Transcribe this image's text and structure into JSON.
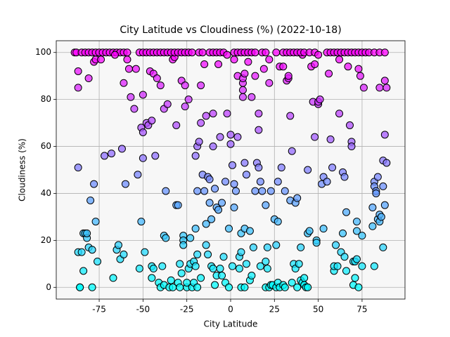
{
  "chart_data": {
    "type": "scatter",
    "title": "City Latitude vs Cloudiness (%) (2022-10-18)",
    "x_label": "City Latitude",
    "y_label": "Cloudiness (%)",
    "colormap": "cool",
    "grid": true,
    "xlim": [
      -99.5,
      99.5
    ],
    "ylim": [
      -5,
      105
    ],
    "xticks": [
      -75,
      -50,
      -25,
      0,
      25,
      50,
      75
    ],
    "yticks": [
      0,
      20,
      40,
      60,
      80,
      100
    ],
    "x": [
      -89,
      -88,
      -87,
      -87,
      -87,
      -87,
      -86,
      -86,
      -85,
      -84,
      -84,
      -83,
      -82,
      -82,
      -81,
      -80,
      -79,
      -79,
      -78,
      -77,
      -76,
      -81,
      -78,
      -77,
      -85,
      -83,
      -81,
      -79,
      -77,
      -75,
      -73,
      -74,
      -72,
      -68,
      -67,
      -65,
      -64,
      -63,
      -62,
      -61,
      -60,
      -61,
      -59,
      -58,
      -57,
      -55,
      -54,
      -53,
      -52,
      -51,
      -50,
      -51,
      -50,
      -49,
      -50,
      -48,
      -71,
      -69,
      -67,
      -65,
      -63,
      -61,
      -59,
      -66,
      -52,
      -50,
      -47,
      -46,
      -45,
      -45,
      -45,
      -44,
      -44,
      -43,
      -42,
      -41,
      -40,
      -40,
      -39,
      -38,
      -38,
      -38,
      -37,
      -37,
      -36,
      -35,
      -34,
      -33,
      -33,
      -32,
      -31,
      -31,
      -30,
      -30,
      -29,
      -29,
      -28,
      -28,
      -27,
      -27,
      -27,
      -26,
      -26,
      -25,
      -25,
      -48,
      -46,
      -44,
      -42,
      -40,
      -38,
      -36,
      -34,
      -32,
      -30,
      -28,
      -26,
      -24,
      -24,
      -23,
      -23,
      -22,
      -21,
      -21,
      -20,
      -20,
      -20,
      -19,
      -19,
      -19,
      -19,
      -18,
      -17,
      -17,
      -17,
      -16,
      -15,
      -15,
      -14,
      -14,
      -14,
      -13,
      -13,
      -12,
      -12,
      -11,
      -11,
      -10,
      -10,
      -10,
      -9,
      -9,
      -8,
      -8,
      -7,
      -7,
      -6,
      -6,
      -5,
      -5,
      -4,
      -3,
      -3,
      -2,
      -1,
      -1,
      -24,
      -22,
      -18,
      -16,
      -12,
      -10,
      -8,
      -6,
      -4,
      -2,
      0,
      0,
      1,
      1,
      2,
      2,
      2,
      3,
      4,
      4,
      5,
      5,
      6,
      6,
      6,
      7,
      7,
      7,
      7,
      8,
      8,
      8,
      8,
      9,
      9,
      10,
      11,
      11,
      12,
      12,
      13,
      14,
      14,
      15,
      16,
      16,
      16,
      17,
      17,
      18,
      19,
      20,
      20,
      20,
      21,
      21,
      22,
      22,
      22,
      23,
      23,
      24,
      25,
      2,
      4,
      6,
      8,
      10,
      12,
      14,
      18,
      20,
      26,
      26,
      27,
      27,
      27,
      28,
      28,
      29,
      30,
      30,
      31,
      31,
      32,
      33,
      33,
      34,
      34,
      35,
      35,
      36,
      37,
      37,
      38,
      38,
      39,
      40,
      40,
      41,
      41,
      42,
      42,
      43,
      44,
      44,
      44,
      45,
      46,
      47,
      48,
      48,
      49,
      49,
      50,
      50,
      51,
      52,
      53,
      53,
      26,
      30,
      32,
      34,
      36,
      38,
      40,
      42,
      45,
      48,
      50,
      55,
      56,
      57,
      58,
      59,
      59,
      60,
      61,
      62,
      62,
      63,
      64,
      64,
      65,
      65,
      66,
      66,
      67,
      68,
      69,
      69,
      70,
      70,
      71,
      71,
      72,
      72,
      72,
      73,
      73,
      74,
      75,
      75,
      76,
      81,
      81,
      82,
      82,
      82,
      83,
      83,
      84,
      84,
      85,
      85,
      85,
      86,
      87,
      87,
      87,
      88,
      88,
      88,
      89,
      89,
      55,
      57,
      59,
      61,
      63,
      65,
      67,
      69,
      71,
      73,
      75,
      77,
      79,
      82,
      85,
      88
    ],
    "values": [
      100,
      100,
      92,
      85,
      51,
      15,
      0,
      0,
      15,
      7,
      23,
      23,
      21,
      23,
      17,
      37,
      16,
      0,
      44,
      28,
      11,
      89,
      96,
      97,
      100,
      100,
      100,
      100,
      100,
      100,
      100,
      97,
      56,
      57,
      4,
      16,
      18,
      12,
      59,
      14,
      44,
      87,
      97,
      93,
      81,
      76,
      93,
      48,
      8,
      68,
      66,
      28,
      55,
      15,
      82,
      70,
      100,
      100,
      100,
      100,
      100,
      100,
      100,
      99,
      100,
      100,
      69,
      92,
      71,
      9,
      4,
      91,
      8,
      56,
      89,
      2,
      0,
      86,
      9,
      1,
      22,
      76,
      41,
      21,
      78,
      0,
      3,
      97,
      0,
      98,
      69,
      35,
      35,
      2,
      0,
      10,
      6,
      88,
      22,
      20,
      18,
      77,
      86,
      0,
      2,
      100,
      100,
      100,
      100,
      100,
      100,
      100,
      100,
      100,
      100,
      100,
      100,
      8,
      80,
      21,
      10,
      0,
      11,
      2,
      9,
      25,
      56,
      0,
      14,
      60,
      41,
      62,
      86,
      70,
      4,
      48,
      95,
      41,
      18,
      73,
      27,
      14,
      47,
      36,
      46,
      29,
      9,
      8,
      74,
      60,
      42,
      1,
      5,
      34,
      95,
      33,
      64,
      8,
      36,
      5,
      13,
      2,
      45,
      74,
      0,
      25,
      100,
      100,
      100,
      100,
      100,
      100,
      100,
      100,
      100,
      99,
      65,
      61,
      9,
      52,
      34,
      44,
      97,
      41,
      64,
      90,
      8,
      13,
      15,
      0,
      23,
      81,
      84,
      87,
      89,
      91,
      25,
      53,
      0,
      10,
      48,
      96,
      24,
      3,
      81,
      5,
      17,
      41,
      90,
      53,
      51,
      67,
      74,
      9,
      45,
      41,
      93,
      35,
      0,
      11,
      8,
      17,
      97,
      87,
      0,
      1,
      41,
      1,
      29,
      100,
      100,
      100,
      100,
      100,
      100,
      100,
      100,
      100,
      18,
      0,
      2,
      28,
      45,
      0,
      94,
      51,
      1,
      94,
      41,
      0,
      88,
      89,
      90,
      73,
      37,
      2,
      58,
      10,
      36,
      8,
      0,
      38,
      10,
      17,
      3,
      2,
      99,
      1,
      4,
      0,
      23,
      0,
      50,
      24,
      94,
      79,
      64,
      95,
      20,
      19,
      78,
      79,
      80,
      44,
      25,
      47,
      100,
      100,
      100,
      100,
      100,
      100,
      100,
      100,
      100,
      100,
      99,
      45,
      91,
      63,
      51,
      7,
      9,
      18,
      9,
      74,
      97,
      15,
      23,
      49,
      13,
      47,
      32,
      7,
      94,
      69,
      62,
      60,
      11,
      1,
      11,
      4,
      12,
      28,
      24,
      0,
      93,
      90,
      22,
      9,
      85,
      34,
      26,
      9,
      45,
      43,
      41,
      40,
      29,
      47,
      31,
      28,
      85,
      30,
      54,
      17,
      43,
      65,
      35,
      88,
      53,
      85,
      100,
      100,
      100,
      100,
      100,
      100,
      100,
      100,
      100,
      100,
      100,
      100,
      100,
      100,
      100,
      100
    ]
  }
}
